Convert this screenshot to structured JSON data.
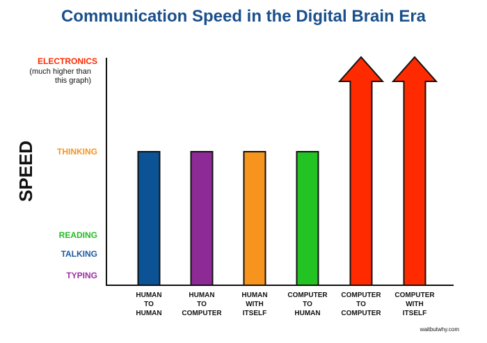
{
  "chart_data": {
    "type": "bar",
    "title": "Communication Speed in the Digital Brain Era",
    "ylabel": "SPEED",
    "xlabel": "",
    "credit": "waitbutwhy.com",
    "y_levels": [
      {
        "key": "typing",
        "label": "TYPING",
        "value": 1,
        "color": "#9b2ea3"
      },
      {
        "key": "talking",
        "label": "TALKING",
        "value": 2,
        "color": "#1a5a9e"
      },
      {
        "key": "reading",
        "label": "READING",
        "value": 3,
        "color": "#22bb22"
      },
      {
        "key": "thinking",
        "label": "THINKING",
        "value": 7,
        "color": "#f7941d"
      },
      {
        "key": "electronics",
        "label": "ELECTRONICS",
        "sublabel": [
          "(much higher than",
          "this graph)"
        ],
        "value": 12,
        "color": "#ff2a00"
      }
    ],
    "ylim": [
      0,
      12
    ],
    "categories": [
      {
        "lines": [
          "HUMAN",
          "TO",
          "HUMAN"
        ]
      },
      {
        "lines": [
          "HUMAN",
          "TO",
          "COMPUTER"
        ]
      },
      {
        "lines": [
          "HUMAN",
          "WITH",
          "ITSELF"
        ]
      },
      {
        "lines": [
          "COMPUTER",
          "TO",
          "HUMAN"
        ]
      },
      {
        "lines": [
          "COMPUTER",
          "TO",
          "COMPUTER"
        ]
      },
      {
        "lines": [
          "COMPUTER",
          "WITH",
          "ITSELF"
        ]
      }
    ],
    "series": [
      {
        "name": "speed",
        "values": [
          7,
          7,
          7,
          7,
          12,
          12
        ],
        "colors": [
          "#0b5394",
          "#8e2a96",
          "#f7941d",
          "#22c322",
          "#ff2a00",
          "#ff2a00"
        ],
        "open_ended": [
          false,
          false,
          false,
          false,
          true,
          true
        ]
      }
    ]
  }
}
